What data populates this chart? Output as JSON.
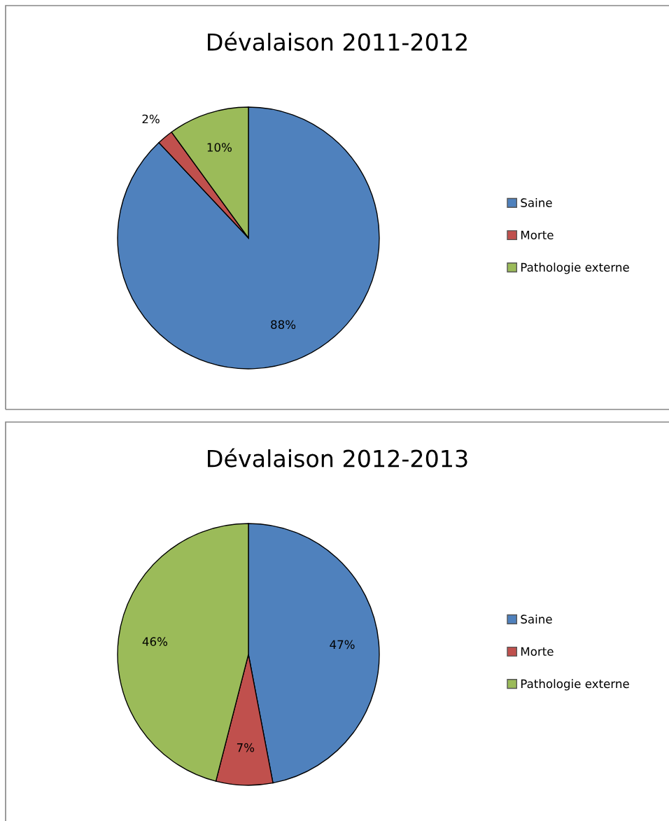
{
  "chart_data": [
    {
      "type": "pie",
      "title": "Dévalaison 2011-2012",
      "categories": [
        "Saine",
        "Morte",
        "Pathologie externe"
      ],
      "values": [
        88,
        2,
        10
      ],
      "colors": [
        "#4f81bd",
        "#c0504d",
        "#9bbb59"
      ],
      "value_labels": [
        "88%",
        "2%",
        "10%"
      ],
      "legend": "right"
    },
    {
      "type": "pie",
      "title": "Dévalaison 2012-2013",
      "categories": [
        "Saine",
        "Morte",
        "Pathologie externe"
      ],
      "values": [
        47,
        7,
        46
      ],
      "colors": [
        "#4f81bd",
        "#c0504d",
        "#9bbb59"
      ],
      "value_labels": [
        "47%",
        "7%",
        "46%"
      ],
      "legend": "right"
    }
  ]
}
